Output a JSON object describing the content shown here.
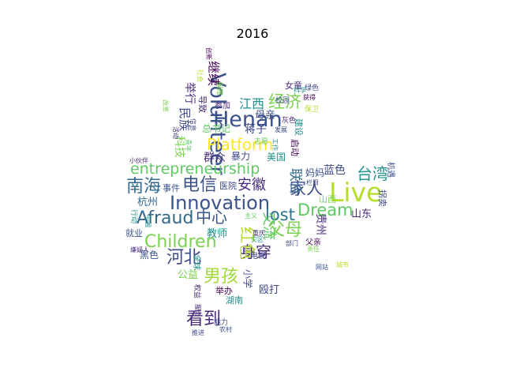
{
  "figure": {
    "title": "2016",
    "words": [
      {
        "text": "Volunteer",
        "color": "#3b528b",
        "vertical": true
      },
      {
        "text": "entrepreneurship",
        "color": "#5ec962",
        "vertical": false
      },
      {
        "text": "Innovation",
        "color": "#3b528b",
        "vertical": false
      },
      {
        "text": "Live",
        "color": "#b5de2b",
        "vertical": false
      },
      {
        "text": "Afraud",
        "color": "#31688e",
        "vertical": false
      },
      {
        "text": "Henan",
        "color": "#3b528b",
        "vertical": false
      },
      {
        "text": "Platform",
        "color": "#fde725",
        "vertical": false
      },
      {
        "text": "Children",
        "color": "#7ad151",
        "vertical": false
      },
      {
        "text": "Dream",
        "color": "#5ec962",
        "vertical": false
      },
      {
        "text": "lost",
        "color": "#2c728e",
        "vertical": false
      },
      {
        "text": "南海",
        "color": "#31688e",
        "vertical": false
      },
      {
        "text": "电信",
        "color": "#3b528b",
        "vertical": false
      },
      {
        "text": "经济",
        "color": "#7ad151",
        "vertical": false
      },
      {
        "text": "台湾",
        "color": "#21918c",
        "vertical": false
      },
      {
        "text": "家人",
        "color": "#3e4989",
        "vertical": false
      },
      {
        "text": "身穿",
        "color": "#472d7b",
        "vertical": false
      },
      {
        "text": "男孩",
        "color": "#a0da39",
        "vertical": false
      },
      {
        "text": "河北",
        "color": "#3e4989",
        "vertical": false
      },
      {
        "text": "看到",
        "color": "#482878",
        "vertical": false
      },
      {
        "text": "中心",
        "color": "#3b528b",
        "vertical": false
      },
      {
        "text": "安徽",
        "color": "#472d7b",
        "vertical": false
      },
      {
        "text": "父母",
        "color": "#7ad151",
        "vertical": false
      },
      {
        "text": "红色",
        "color": "#b5de2b",
        "vertical": true
      },
      {
        "text": "交流",
        "color": "#5ec962",
        "vertical": true
      },
      {
        "text": "联合",
        "color": "#31688e",
        "vertical": true
      },
      {
        "text": "继续",
        "color": "#440154",
        "vertical": true
      },
      {
        "text": "民族",
        "color": "#3e4989",
        "vertical": true
      },
      {
        "text": "举行",
        "color": "#482878",
        "vertical": true
      },
      {
        "text": "江西",
        "color": "#21918c",
        "vertical": false
      },
      {
        "text": "母亲",
        "color": "#3b528b",
        "vertical": false
      },
      {
        "text": "蒋子",
        "color": "#3e4989",
        "vertical": false
      },
      {
        "text": "科技",
        "color": "#7ad151",
        "vertical": true
      },
      {
        "text": "群众",
        "color": "#472d7b",
        "vertical": false
      },
      {
        "text": "暴力",
        "color": "#3e4989",
        "vertical": false
      },
      {
        "text": "美国",
        "color": "#21918c",
        "vertical": false
      },
      {
        "text": "启动",
        "color": "#440154",
        "vertical": true
      },
      {
        "text": "建设",
        "color": "#21918c",
        "vertical": true
      },
      {
        "text": "蓝色",
        "color": "#3e4989",
        "vertical": false
      },
      {
        "text": "妈妈",
        "color": "#3b528b",
        "vertical": false
      },
      {
        "text": "杭州",
        "color": "#31688e",
        "vertical": false
      },
      {
        "text": "事件",
        "color": "#3b528b",
        "vertical": false
      },
      {
        "text": "医院",
        "color": "#3e4989",
        "vertical": false
      },
      {
        "text": "山东",
        "color": "#482878",
        "vertical": false
      },
      {
        "text": "贵州",
        "color": "#472d7b",
        "vertical": true
      },
      {
        "text": "教师",
        "color": "#21918c",
        "vertical": false
      },
      {
        "text": "公益",
        "color": "#7ad151",
        "vertical": false
      },
      {
        "text": "黑色",
        "color": "#3b528b",
        "vertical": false
      },
      {
        "text": "殴打",
        "color": "#3e4989",
        "vertical": false
      },
      {
        "text": "举办",
        "color": "#440154",
        "vertical": false
      },
      {
        "text": "湖南",
        "color": "#21918c",
        "vertical": false
      },
      {
        "text": "能力",
        "color": "#3e4989",
        "vertical": false
      },
      {
        "text": "就业",
        "color": "#3b528b",
        "vertical": false
      },
      {
        "text": "父亲",
        "color": "#440154",
        "vertical": false
      },
      {
        "text": "电视",
        "color": "#3e4989",
        "vertical": false
      },
      {
        "text": "女童",
        "color": "#472d7b",
        "vertical": false
      },
      {
        "text": "绿色",
        "color": "#3e4989",
        "vertical": false
      },
      {
        "text": "灰色",
        "color": "#482878",
        "vertical": false
      },
      {
        "text": "校园",
        "color": "#3e4989",
        "vertical": false
      },
      {
        "text": "科学",
        "color": "#21918c",
        "vertical": false
      },
      {
        "text": "获得",
        "color": "#440154",
        "vertical": false
      },
      {
        "text": "保卫",
        "color": "#b5de2b",
        "vertical": false
      },
      {
        "text": "参加",
        "color": "#482878",
        "vertical": false
      },
      {
        "text": "导致",
        "color": "#472d7b",
        "vertical": true
      },
      {
        "text": "总书记",
        "color": "#5ec962",
        "vertical": false
      },
      {
        "text": "小伙伴",
        "color": "#482878",
        "vertical": false
      },
      {
        "text": "小学",
        "color": "#3e4989",
        "vertical": true
      },
      {
        "text": "全球",
        "color": "#21918c",
        "vertical": true
      },
      {
        "text": "行动",
        "color": "#21918c",
        "vertical": true
      },
      {
        "text": "权益",
        "color": "#472d7b",
        "vertical": true
      },
      {
        "text": "拐卖",
        "color": "#3e4989",
        "vertical": true
      },
      {
        "text": "网站",
        "color": "#3b528b",
        "vertical": false
      },
      {
        "text": "推进",
        "color": "#3e4989",
        "vertical": false
      },
      {
        "text": "灾区",
        "color": "#21918c",
        "vertical": false
      },
      {
        "text": "主义",
        "color": "#5ec962",
        "vertical": false
      },
      {
        "text": "山西",
        "color": "#7ad151",
        "vertical": false
      },
      {
        "text": "栏目",
        "color": "#3e4989",
        "vertical": false
      },
      {
        "text": "责任",
        "color": "#7ad151",
        "vertical": false
      },
      {
        "text": "发展",
        "color": "#3e4989",
        "vertical": false
      },
      {
        "text": "重庆",
        "color": "#472d7b",
        "vertical": false
      },
      {
        "text": "机遇",
        "color": "#3b528b",
        "vertical": true
      },
      {
        "text": "保障",
        "color": "#7ad151",
        "vertical": true
      },
      {
        "text": "信息",
        "color": "#3e4989",
        "vertical": true
      },
      {
        "text": "社会",
        "color": "#b5de2b",
        "vertical": true
      },
      {
        "text": "嫌疑人",
        "color": "#472d7b",
        "vertical": false
      },
      {
        "text": "志愿",
        "color": "#5ec962",
        "vertical": false
      },
      {
        "text": "服务",
        "color": "#482878",
        "vertical": true
      },
      {
        "text": "部门",
        "color": "#3e4989",
        "vertical": false
      },
      {
        "text": "城市",
        "color": "#b5de2b",
        "vertical": false
      },
      {
        "text": "创新",
        "color": "#440154",
        "vertical": true
      },
      {
        "text": "工作",
        "color": "#21918c",
        "vertical": true
      },
      {
        "text": "农村",
        "color": "#3b528b",
        "vertical": false
      },
      {
        "text": "改革",
        "color": "#7ad151",
        "vertical": true
      },
      {
        "text": "活动",
        "color": "#472d7b",
        "vertical": true
      },
      {
        "text": "中国",
        "color": "#21918c",
        "vertical": true
      },
      {
        "text": "青年",
        "color": "#5ec962",
        "vertical": true
      }
    ]
  }
}
